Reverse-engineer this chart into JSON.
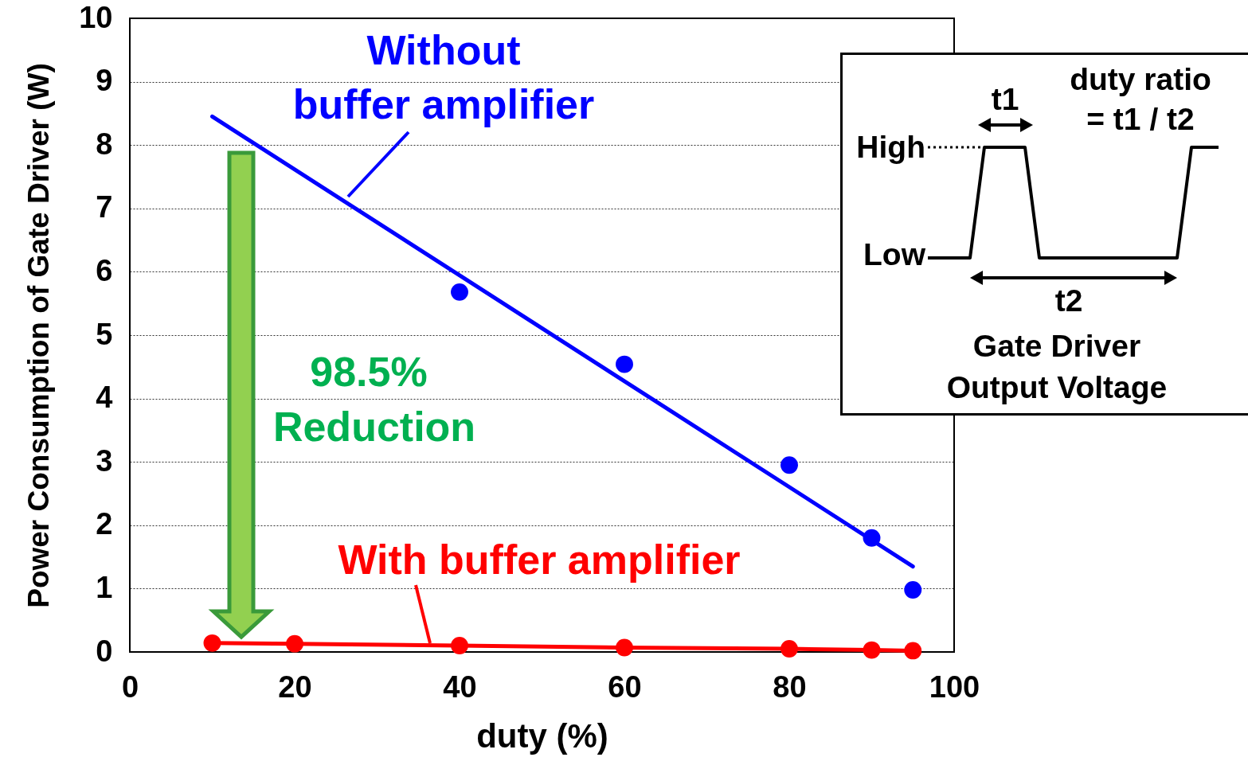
{
  "chart_data": {
    "type": "scatter",
    "xlabel": "duty (%)",
    "ylabel": "Power Consumption of Gate Driver (W)",
    "xlim": [
      0,
      100
    ],
    "xticks": [
      0,
      20,
      40,
      60,
      80,
      100
    ],
    "ylim": [
      0,
      10
    ],
    "yticks": [
      0,
      1,
      2,
      3,
      4,
      5,
      6,
      7,
      8,
      9,
      10
    ],
    "grid": "y",
    "legend": false,
    "marker": "circle",
    "series": [
      {
        "name": "Without buffer amplifier",
        "color": "#0000ff",
        "x": [
          40,
          60,
          80,
          90,
          95
        ],
        "values": [
          5.68,
          4.54,
          2.95,
          1.8,
          0.98
        ]
      },
      {
        "type": "line",
        "marker": "none",
        "color": "#0000ff",
        "x": [
          10,
          95
        ],
        "values": [
          8.45,
          1.35
        ]
      },
      {
        "name": "With buffer amplifier",
        "type": "line",
        "color": "#ff0000",
        "x": [
          10,
          20,
          40,
          60,
          80,
          90,
          95
        ],
        "values": [
          0.14,
          0.13,
          0.1,
          0.07,
          0.05,
          0.03,
          0.02
        ]
      }
    ],
    "annotations": [
      "98.5%",
      "Reduction",
      "duty ratio",
      "=  t1 / t2",
      "t1",
      "High",
      "Low",
      "t2",
      "Gate Driver",
      "Output Voltage"
    ]
  }
}
